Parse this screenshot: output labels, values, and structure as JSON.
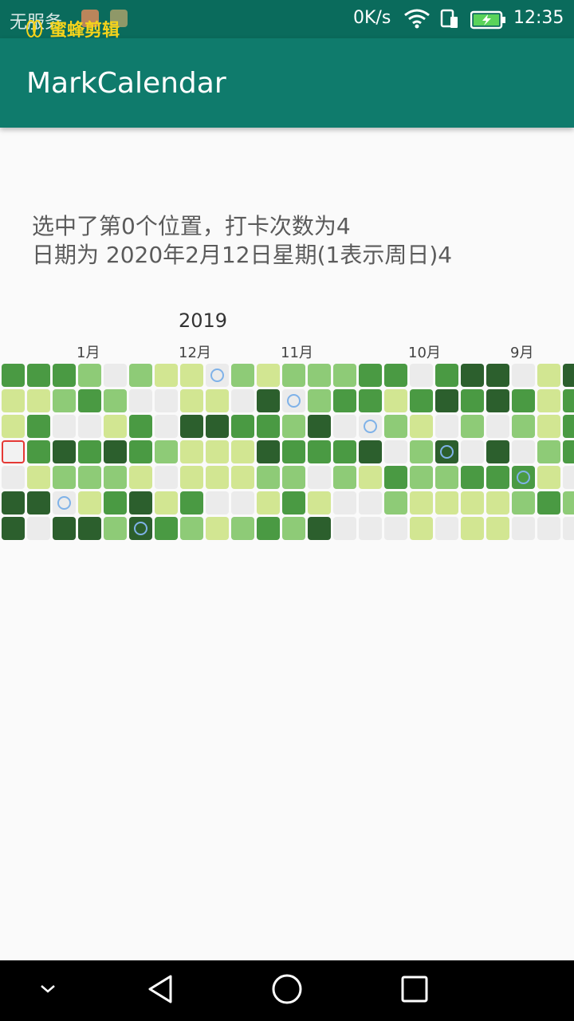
{
  "status_bar": {
    "carrier": "无服务",
    "watermark": "蜜蜂剪辑",
    "network_speed": "0K/s",
    "clock": "12:35",
    "icons": [
      "notification-icon",
      "wifi-icon",
      "sim-icon",
      "battery-charging-icon"
    ]
  },
  "app_bar": {
    "title": "MarkCalendar"
  },
  "info": {
    "line1": "选中了第0个位置，打卡次数为4",
    "line2": "日期为 2020年2月12日星期(1表示周日)4"
  },
  "heatmap": {
    "year": "2019",
    "months": [
      "1月",
      "12月",
      "11月",
      "10月",
      "9月"
    ],
    "colors": {
      "0": "#ebebeb",
      "1": "#d2e692",
      "2": "#8ecb77",
      "3": "#4a9a43",
      "4": "#2c5f2d"
    },
    "today_ring_color": "#7fb2e8",
    "selected_border_color": "#e53935",
    "rows": [
      [
        3,
        3,
        3,
        2,
        0,
        2,
        1,
        1,
        "o",
        2,
        1,
        2,
        2,
        2,
        3,
        3,
        0,
        3,
        4,
        4,
        0,
        1,
        4
      ],
      [
        1,
        1,
        2,
        3,
        2,
        0,
        0,
        1,
        1,
        0,
        4,
        "o",
        2,
        3,
        3,
        1,
        3,
        4,
        3,
        4,
        3,
        1,
        3
      ],
      [
        1,
        3,
        0,
        0,
        1,
        3,
        0,
        4,
        4,
        3,
        3,
        2,
        4,
        0,
        "o",
        2,
        1,
        0,
        2,
        0,
        2,
        1,
        3
      ],
      [
        "S",
        3,
        4,
        3,
        4,
        3,
        2,
        1,
        1,
        1,
        4,
        3,
        3,
        3,
        4,
        0,
        2,
        "o4",
        0,
        4,
        0,
        2,
        3
      ],
      [
        0,
        1,
        2,
        2,
        2,
        1,
        0,
        1,
        1,
        1,
        2,
        2,
        0,
        2,
        1,
        3,
        2,
        2,
        3,
        3,
        "o3",
        1,
        0
      ],
      [
        4,
        4,
        "o",
        1,
        3,
        4,
        1,
        3,
        0,
        0,
        1,
        3,
        1,
        0,
        0,
        2,
        1,
        1,
        1,
        1,
        2,
        3,
        2
      ],
      [
        4,
        0,
        4,
        4,
        2,
        "o4",
        3,
        2,
        1,
        2,
        3,
        2,
        4,
        0,
        0,
        0,
        1,
        0,
        1,
        1,
        0,
        0,
        0
      ]
    ]
  },
  "nav_bar": {
    "buttons": [
      "chevron-down-icon",
      "back-icon",
      "home-icon",
      "recents-icon"
    ]
  }
}
